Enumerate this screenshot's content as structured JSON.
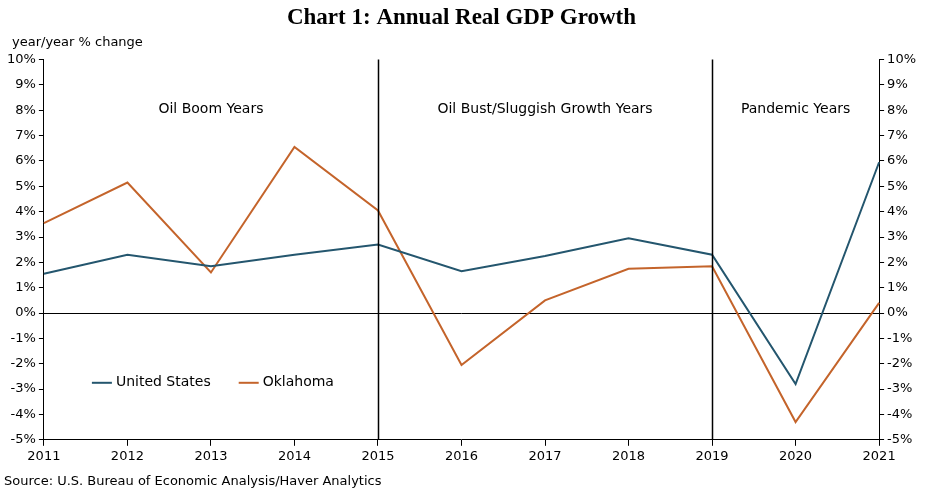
{
  "chart_data": {
    "type": "line",
    "title": "Chart 1: Annual Real GDP Growth",
    "y_label": "year/year % change",
    "source": "Source: U.S. Bureau of Economic Analysis/Haver Analytics",
    "categories": [
      "2011",
      "2012",
      "2013",
      "2014",
      "2015",
      "2016",
      "2017",
      "2018",
      "2019",
      "2020",
      "2021"
    ],
    "series": [
      {
        "name": "United States",
        "color": "#24566e",
        "values": [
          1.55,
          2.3,
          1.85,
          2.3,
          2.7,
          1.65,
          2.25,
          2.95,
          2.3,
          -2.8,
          5.95
        ]
      },
      {
        "name": "Oklahoma",
        "color": "#c4642b",
        "values": [
          3.55,
          5.15,
          1.6,
          6.55,
          4.05,
          -2.05,
          0.5,
          1.75,
          1.85,
          -4.3,
          0.4
        ]
      }
    ],
    "periods": [
      {
        "label": "Oil Boom Years",
        "start": "2011",
        "end": "2015"
      },
      {
        "label": "Oil Bust/Sluggish Growth Years",
        "start": "2015",
        "end": "2019"
      },
      {
        "label": "Pandemic Years",
        "start": "2019",
        "end": "2021"
      }
    ],
    "ylim": [
      -5,
      10
    ],
    "yticks": [
      {
        "value": -5,
        "label": "-5%"
      },
      {
        "value": -4,
        "label": "-4%"
      },
      {
        "value": -3,
        "label": "-3%"
      },
      {
        "value": -2,
        "label": "-2%"
      },
      {
        "value": -1,
        "label": "-1%"
      },
      {
        "value": 0,
        "label": "0%"
      },
      {
        "value": 1,
        "label": "1%"
      },
      {
        "value": 2,
        "label": "2%"
      },
      {
        "value": 3,
        "label": "3%"
      },
      {
        "value": 4,
        "label": "4%"
      },
      {
        "value": 5,
        "label": "5%"
      },
      {
        "value": 6,
        "label": "6%"
      },
      {
        "value": 7,
        "label": "7%"
      },
      {
        "value": 8,
        "label": "8%"
      },
      {
        "value": 9,
        "label": "9%"
      },
      {
        "value": 10,
        "label": "10%"
      }
    ],
    "y2lim": [
      -5,
      10
    ],
    "y2ticks": [
      {
        "value": -5,
        "label": "-5%"
      },
      {
        "value": -4,
        "label": "-4%"
      },
      {
        "value": -3,
        "label": "-3%"
      },
      {
        "value": -2,
        "label": "-2%"
      },
      {
        "value": -1,
        "label": "-1%"
      },
      {
        "value": 0,
        "label": "0%"
      },
      {
        "value": 1,
        "label": "1%"
      },
      {
        "value": 2,
        "label": "2%"
      },
      {
        "value": 3,
        "label": "3%"
      },
      {
        "value": 4,
        "label": "4%"
      },
      {
        "value": 5,
        "label": "5%"
      },
      {
        "value": 6,
        "label": "6%"
      },
      {
        "value": 7,
        "label": "7%"
      },
      {
        "value": 8,
        "label": "8%"
      },
      {
        "value": 9,
        "label": "9%"
      },
      {
        "value": 10,
        "label": "10%"
      }
    ],
    "grid": false,
    "legend": "lower left"
  }
}
